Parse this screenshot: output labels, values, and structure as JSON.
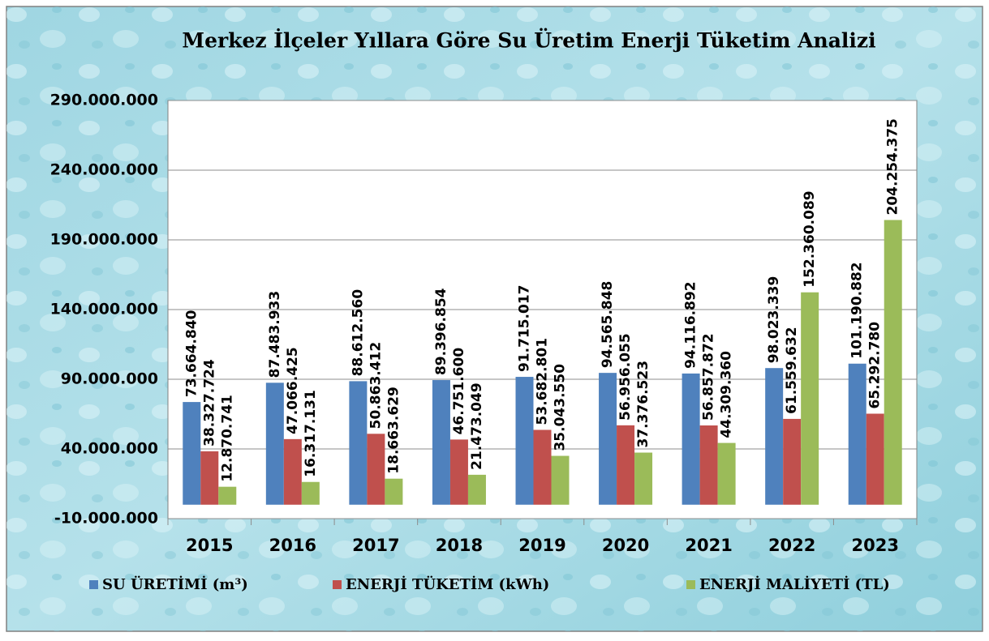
{
  "chart_data": {
    "type": "bar",
    "title": "Merkez İlçeler Yıllara Göre Su Üretim Enerji Tüketim Analizi",
    "categories": [
      "2015",
      "2016",
      "2017",
      "2018",
      "2019",
      "2020",
      "2021",
      "2022",
      "2023"
    ],
    "series": [
      {
        "name": "SU ÜRETİMİ (m³)",
        "color": "#4f81bd",
        "values": [
          73664840,
          87483933,
          88612560,
          89396854,
          91715017,
          94565848,
          94116892,
          98023339,
          101190882
        ],
        "value_labels": [
          "73.664.840",
          "87.483.933",
          "88.612.560",
          "89.396.854",
          "91.715.017",
          "94.565.848",
          "94.116.892",
          "98.023.339",
          "101.190.882"
        ]
      },
      {
        "name": "ENERJİ TÜKETİM (kWh)",
        "color": "#c0504d",
        "values": [
          38327724,
          47066425,
          50863412,
          46751600,
          53682801,
          56956055,
          56857872,
          61559632,
          65292780
        ],
        "value_labels": [
          "38.327.724",
          "47.066.425",
          "50.863.412",
          "46.751.600",
          "53.682.801",
          "56.956.055",
          "56.857.872",
          "61.559.632",
          "65.292.780"
        ]
      },
      {
        "name": "ENERJİ MALİYETİ (TL)",
        "color": "#9bbb59",
        "values": [
          12870741,
          16317131,
          18663629,
          21473049,
          35043550,
          37376523,
          44309360,
          152360089,
          204254375
        ],
        "value_labels": [
          "12.870.741",
          "16.317.131",
          "18.663.629",
          "21.473.049",
          "35.043.550",
          "37.376.523",
          "44.309.360",
          "152.360.089",
          "204.254.375"
        ]
      }
    ],
    "ylim": [
      -10000000,
      290000000
    ],
    "yticks": [
      {
        "value": -10000000,
        "label": "-10.000.000"
      },
      {
        "value": 40000000,
        "label": "40.000.000"
      },
      {
        "value": 90000000,
        "label": "90.000.000"
      },
      {
        "value": 140000000,
        "label": "140.000.000"
      },
      {
        "value": 190000000,
        "label": "190.000.000"
      },
      {
        "value": 240000000,
        "label": "240.000.000"
      },
      {
        "value": 290000000,
        "label": "290.000.000"
      }
    ],
    "grid": true,
    "legend": "bottom"
  }
}
